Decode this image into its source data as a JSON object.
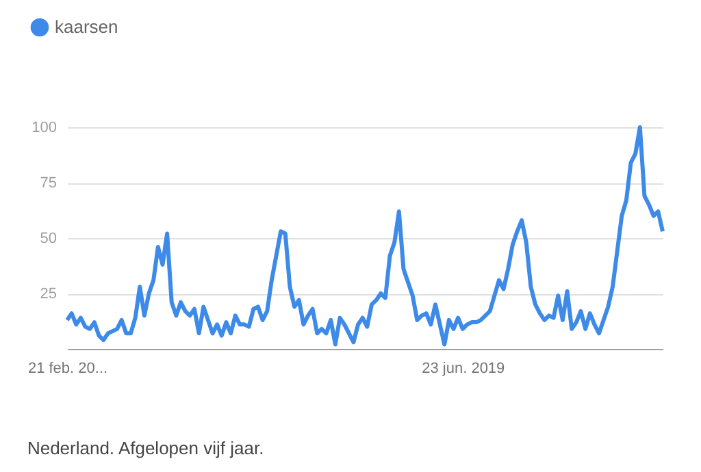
{
  "chart_data": {
    "type": "line",
    "x": [
      "2016-02-21",
      "2016-03-06",
      "2016-03-20",
      "2016-04-03",
      "2016-04-17",
      "2016-05-01",
      "2016-05-15",
      "2016-05-29",
      "2016-06-12",
      "2016-06-26",
      "2016-07-10",
      "2016-07-24",
      "2016-08-07",
      "2016-08-21",
      "2016-09-04",
      "2016-09-18",
      "2016-10-02",
      "2016-10-16",
      "2016-10-30",
      "2016-11-13",
      "2016-11-27",
      "2016-12-11",
      "2016-12-25",
      "2017-01-08",
      "2017-01-22",
      "2017-02-05",
      "2017-02-19",
      "2017-03-05",
      "2017-03-19",
      "2017-04-02",
      "2017-04-16",
      "2017-04-30",
      "2017-05-14",
      "2017-05-28",
      "2017-06-11",
      "2017-06-25",
      "2017-07-09",
      "2017-07-23",
      "2017-08-06",
      "2017-08-20",
      "2017-09-03",
      "2017-09-17",
      "2017-10-01",
      "2017-10-15",
      "2017-10-29",
      "2017-11-12",
      "2017-11-26",
      "2017-12-10",
      "2017-12-24",
      "2018-01-07",
      "2018-01-21",
      "2018-02-04",
      "2018-02-18",
      "2018-03-04",
      "2018-03-18",
      "2018-04-01",
      "2018-04-15",
      "2018-04-29",
      "2018-05-13",
      "2018-05-27",
      "2018-06-10",
      "2018-06-24",
      "2018-07-08",
      "2018-07-22",
      "2018-08-05",
      "2018-08-19",
      "2018-09-02",
      "2018-09-16",
      "2018-09-30",
      "2018-10-14",
      "2018-10-28",
      "2018-11-11",
      "2018-11-25",
      "2018-12-09",
      "2018-12-23",
      "2019-01-06",
      "2019-01-20",
      "2019-02-03",
      "2019-02-17",
      "2019-03-03",
      "2019-03-17",
      "2019-03-31",
      "2019-04-14",
      "2019-04-28",
      "2019-05-12",
      "2019-05-26",
      "2019-06-09",
      "2019-06-23",
      "2019-07-07",
      "2019-07-21",
      "2019-08-04",
      "2019-08-18",
      "2019-09-01",
      "2019-09-15",
      "2019-09-29",
      "2019-10-13",
      "2019-10-27",
      "2019-11-10",
      "2019-11-24",
      "2019-12-08",
      "2019-12-22",
      "2020-01-05",
      "2020-01-19",
      "2020-02-02",
      "2020-02-16",
      "2020-03-01",
      "2020-03-15",
      "2020-03-29",
      "2020-04-12",
      "2020-04-26",
      "2020-05-10",
      "2020-05-24",
      "2020-06-07",
      "2020-06-21",
      "2020-07-05",
      "2020-07-19",
      "2020-08-02",
      "2020-08-16",
      "2020-08-30",
      "2020-09-13",
      "2020-09-27",
      "2020-10-11",
      "2020-10-25",
      "2020-11-08",
      "2020-11-22",
      "2020-12-06",
      "2020-12-20",
      "2021-01-03",
      "2021-01-17",
      "2021-01-31",
      "2021-02-14",
      "2021-02-28"
    ],
    "series": [
      {
        "name": "kaarsen",
        "color": "#3d8ae9",
        "values": [
          13,
          16,
          11,
          14,
          10,
          9,
          12,
          6,
          4,
          7,
          8,
          9,
          13,
          7,
          7,
          14,
          28,
          15,
          25,
          31,
          46,
          38,
          52,
          21,
          15,
          21,
          17,
          15,
          18,
          7,
          19,
          13,
          7,
          11,
          6,
          12,
          7,
          15,
          11,
          11,
          10,
          18,
          19,
          13,
          17,
          31,
          42,
          53,
          52,
          28,
          19,
          22,
          11,
          15,
          18,
          7,
          9,
          7,
          13,
          2,
          14,
          11,
          7,
          3,
          11,
          14,
          10,
          20,
          22,
          25,
          23,
          42,
          48,
          62,
          36,
          30,
          24,
          13,
          15,
          16,
          11,
          20,
          11,
          2,
          13,
          9,
          14,
          9,
          11,
          12,
          12,
          13,
          15,
          17,
          24,
          31,
          27,
          36,
          47,
          53,
          58,
          48,
          28,
          20,
          16,
          13,
          15,
          14,
          24,
          13,
          26,
          9,
          12,
          17,
          9,
          16,
          11,
          7,
          13,
          19,
          28,
          44,
          60,
          67,
          84,
          88,
          100,
          69,
          65,
          60,
          62,
          53
        ]
      }
    ],
    "xlim": [
      "2016-02-21",
      "2021-02-28"
    ],
    "xticks": [
      {
        "value": "2016-02-21",
        "label": "21 feb. 20..."
      },
      {
        "value": "2019-06-23",
        "label": "23 jun. 2019"
      }
    ],
    "ylim": [
      0,
      100
    ],
    "yticks": [
      25,
      50,
      75,
      100
    ],
    "grid": "y",
    "legend": "top left",
    "marker": "none",
    "line_style": "solid",
    "annotations": [
      "Nederland. Afgelopen vijf jaar."
    ]
  }
}
